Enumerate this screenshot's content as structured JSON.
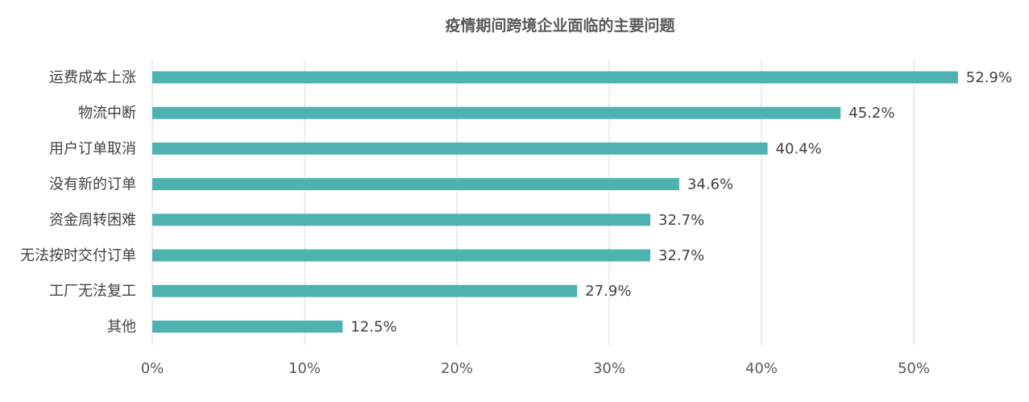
{
  "chart_data": {
    "type": "bar",
    "orientation": "horizontal",
    "title": "疫情期间跨境企业面临的主要问题",
    "categories": [
      "运费成本上涨",
      "物流中断",
      "用户订单取消",
      "没有新的订单",
      "资金周转困难",
      "无法按时交付订单",
      "工厂无法复工",
      "其他"
    ],
    "values": [
      52.9,
      45.2,
      40.4,
      34.6,
      32.7,
      32.7,
      27.9,
      12.5
    ],
    "value_labels": [
      "52.9%",
      "45.2%",
      "40.4%",
      "34.6%",
      "32.7%",
      "32.7%",
      "27.9%",
      "12.5%"
    ],
    "x_ticks": [
      0,
      10,
      20,
      30,
      40,
      50
    ],
    "x_tick_labels": [
      "0%",
      "10%",
      "20%",
      "30%",
      "40%",
      "50%"
    ],
    "xlim": [
      0,
      55
    ],
    "grid": "vertical",
    "legend": "none",
    "bar_color": "#4DB2B0"
  }
}
